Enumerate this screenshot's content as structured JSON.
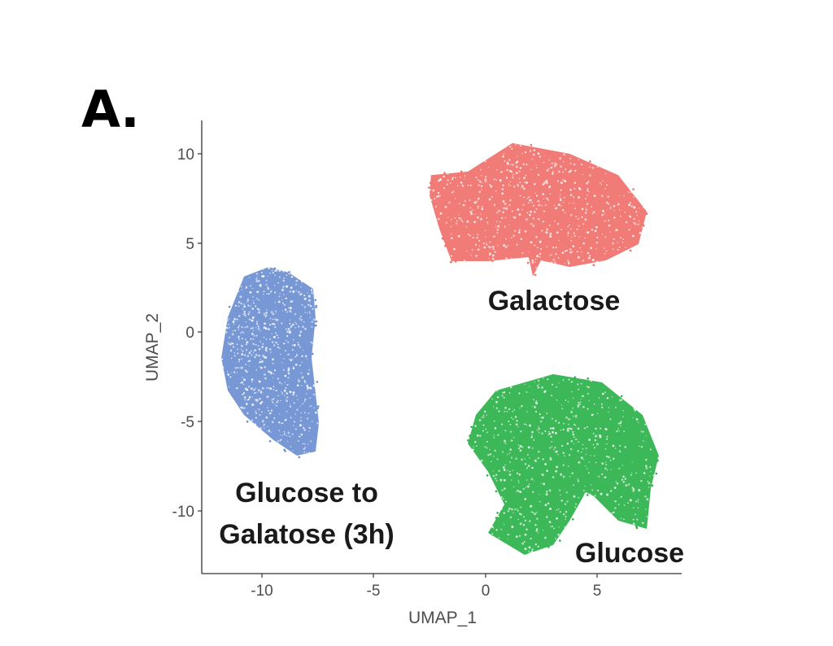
{
  "panel_label": "A.",
  "chart_data": {
    "type": "scatter",
    "title": "",
    "xlabel": "UMAP_1",
    "ylabel": "UMAP_2",
    "xlim": [
      -12.6,
      8.9
    ],
    "ylim": [
      -13.4,
      11.9
    ],
    "xticks": [
      -10,
      -5,
      0,
      5
    ],
    "yticks": [
      -10,
      -5,
      0,
      5,
      10
    ],
    "grid": false,
    "legend": "none (clusters labeled directly)",
    "series": [
      {
        "name": "Galactose",
        "color": "#F0716B",
        "center": [
          2.7,
          7.5
        ],
        "label_position": [
          2.6,
          1.8
        ],
        "outline": [
          [
            -2.45,
            8.8
          ],
          [
            -0.8,
            9.0
          ],
          [
            1.2,
            10.6
          ],
          [
            3.77,
            10.0
          ],
          [
            5.95,
            8.8
          ],
          [
            7.23,
            6.76
          ],
          [
            6.86,
            4.93
          ],
          [
            5.4,
            4.02
          ],
          [
            3.77,
            3.65
          ],
          [
            2.48,
            4.02
          ],
          [
            2.12,
            3.11
          ],
          [
            1.93,
            4.2
          ],
          [
            0.11,
            3.97
          ],
          [
            -1.53,
            3.97
          ],
          [
            -2.08,
            5.8
          ],
          [
            -2.52,
            7.67
          ]
        ]
      },
      {
        "name": "Glucose",
        "color": "#2DB24A",
        "center": [
          4.0,
          -6.5
        ],
        "label_position": [
          6.4,
          -12.3
        ],
        "outline": [
          [
            0.47,
            -3.29
          ],
          [
            3.03,
            -2.37
          ],
          [
            5.22,
            -2.83
          ],
          [
            7.04,
            -4.66
          ],
          [
            7.77,
            -6.94
          ],
          [
            7.41,
            -8.77
          ],
          [
            7.23,
            -11.05
          ],
          [
            5.95,
            -10.59
          ],
          [
            4.85,
            -9.22
          ],
          [
            4.49,
            -8.99
          ],
          [
            3.77,
            -10.59
          ],
          [
            3.03,
            -11.96
          ],
          [
            1.75,
            -12.51
          ],
          [
            0.11,
            -11.28
          ],
          [
            0.84,
            -9.68
          ],
          [
            0.11,
            -7.85
          ],
          [
            -0.8,
            -6.26
          ],
          [
            -0.44,
            -4.66
          ]
        ]
      },
      {
        "name": "Glucose to Galatose (3h)",
        "color": "#6B8FD1",
        "center": [
          -9.5,
          -1.6
        ],
        "label_position": [
          -8.3,
          -10.7
        ],
        "outline": [
          [
            -10.84,
            3.11
          ],
          [
            -9.74,
            3.65
          ],
          [
            -8.83,
            3.33
          ],
          [
            -7.74,
            2.42
          ],
          [
            -7.63,
            0.82
          ],
          [
            -7.81,
            -1.46
          ],
          [
            -7.48,
            -5.11
          ],
          [
            -7.63,
            -6.71
          ],
          [
            -8.47,
            -6.94
          ],
          [
            -9.56,
            -6.03
          ],
          [
            -10.84,
            -4.66
          ],
          [
            -11.57,
            -3.29
          ],
          [
            -11.86,
            -1.46
          ],
          [
            -11.57,
            0.82
          ]
        ]
      }
    ]
  },
  "labels": {
    "galactose": "Galactose",
    "glucose": "Glucose",
    "g2g_line1": "Glucose to",
    "g2g_line2": "Galatose (3h)"
  },
  "axis": {
    "x_title": "UMAP_1",
    "y_title": "UMAP_2",
    "x_ticks": [
      "-10",
      "-5",
      "0",
      "5"
    ],
    "y_ticks": [
      "10",
      "5",
      "0",
      "-5",
      "-10"
    ]
  }
}
